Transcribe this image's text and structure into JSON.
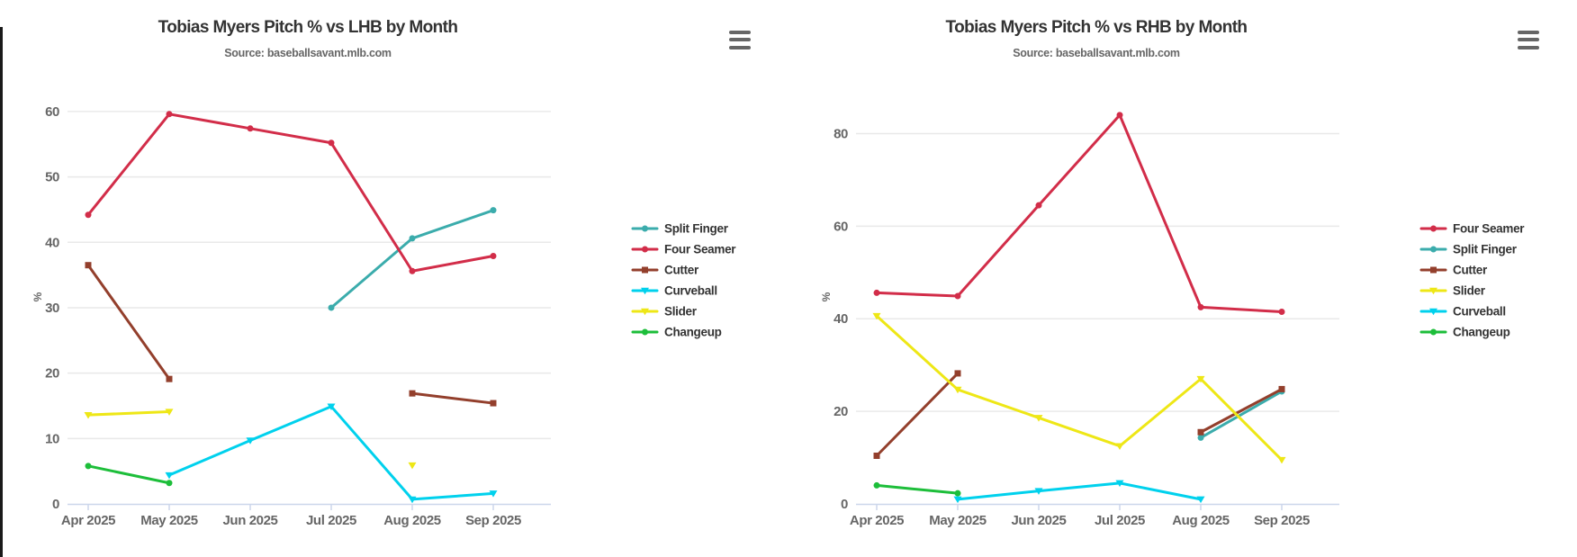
{
  "icons": {
    "chart_menu": "hamburger-menu-icon"
  },
  "charts": [
    {
      "chart_data": {
        "type": "line",
        "title": "Tobias Myers Pitch % vs LHB by Month",
        "subtitle": "Source: baseballsavant.mlb.com",
        "x": [
          "Apr 2025",
          "May 2025",
          "Jun 2025",
          "Jul 2025",
          "Aug 2025",
          "Sep 2025"
        ],
        "xlabel": "",
        "ylabel": "%",
        "yticks": [
          0,
          10,
          20,
          30,
          40,
          50,
          60
        ],
        "ylim": [
          0,
          63.7
        ],
        "grid": "horizontal",
        "legend_position": "right",
        "series": [
          {
            "name": "Split Finger",
            "color": "#3BACAC",
            "marker": "circle",
            "values": [
              null,
              null,
              null,
              30,
              40.6,
              44.9
            ]
          },
          {
            "name": "Four Seamer",
            "color": "#D22D49",
            "marker": "circle",
            "values": [
              44.2,
              59.6,
              57.4,
              55.2,
              35.6,
              37.9
            ]
          },
          {
            "name": "Cutter",
            "color": "#933F2C",
            "marker": "square",
            "values": [
              36.5,
              19.1,
              null,
              null,
              16.9,
              15.4
            ]
          },
          {
            "name": "Curveball",
            "color": "#00D1ED",
            "marker": "triangle-down",
            "values": [
              null,
              4.4,
              9.7,
              14.9,
              0.7,
              1.6
            ]
          },
          {
            "name": "Slider",
            "color": "#EEE716",
            "marker": "triangle-down",
            "values": [
              13.6,
              14.1,
              null,
              null,
              5.9,
              null
            ]
          },
          {
            "name": "Changeup",
            "color": "#1DBE3A",
            "marker": "circle",
            "values": [
              5.8,
              3.2,
              null,
              null,
              null,
              null
            ]
          }
        ]
      }
    },
    {
      "chart_data": {
        "type": "line",
        "title": "Tobias Myers Pitch % vs RHB by Month",
        "subtitle": "Source: baseballsavant.mlb.com",
        "x": [
          "Apr 2025",
          "May 2025",
          "Jun 2025",
          "Jul 2025",
          "Aug 2025",
          "Sep 2025"
        ],
        "xlabel": "",
        "ylabel": "%",
        "yticks": [
          0,
          20,
          40,
          60,
          80
        ],
        "ylim": [
          0,
          90
        ],
        "grid": "horizontal",
        "legend_position": "right",
        "series": [
          {
            "name": "Four Seamer",
            "color": "#D22D49",
            "marker": "circle",
            "values": [
              45.6,
              44.9,
              64.5,
              84,
              42.5,
              41.5
            ]
          },
          {
            "name": "Split Finger",
            "color": "#3BACAC",
            "marker": "circle",
            "values": [
              null,
              null,
              null,
              null,
              14.3,
              24.3
            ]
          },
          {
            "name": "Cutter",
            "color": "#933F2C",
            "marker": "square",
            "values": [
              10.4,
              28.2,
              null,
              null,
              15.5,
              24.8
            ]
          },
          {
            "name": "Slider",
            "color": "#EEE716",
            "marker": "triangle-down",
            "values": [
              40.6,
              24.7,
              18.6,
              12.5,
              27,
              9.5
            ]
          },
          {
            "name": "Curveball",
            "color": "#00D1ED",
            "marker": "triangle-down",
            "values": [
              null,
              1,
              2.8,
              4.5,
              1,
              null
            ]
          },
          {
            "name": "Changeup",
            "color": "#1DBE3A",
            "marker": "circle",
            "values": [
              4,
              2.3,
              null,
              null,
              null,
              null
            ]
          }
        ]
      }
    }
  ]
}
